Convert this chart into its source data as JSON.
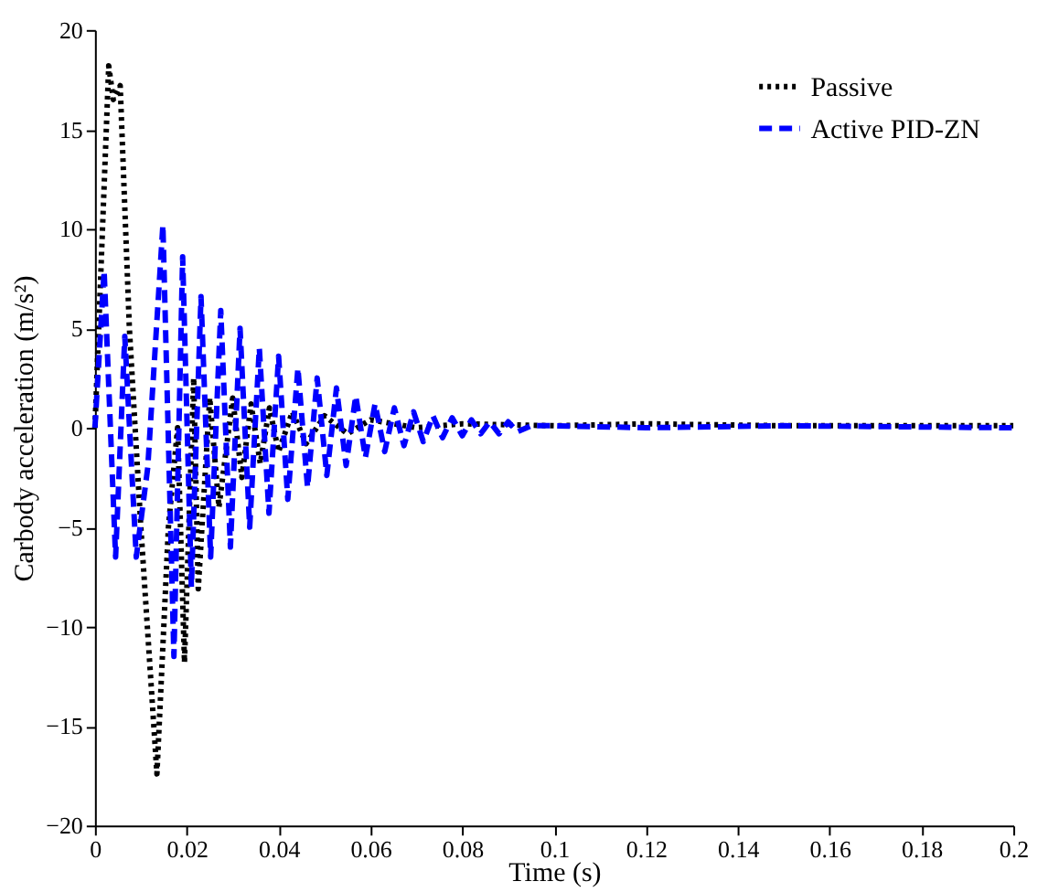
{
  "chart_data": {
    "type": "line",
    "xlabel": "Time (s)",
    "ylabel": "Carbody acceleration (m/s²)",
    "xlim": [
      0,
      0.2
    ],
    "xticks": [
      0,
      0.02,
      0.04,
      0.06,
      0.08,
      0.1,
      0.12,
      0.14,
      0.16,
      0.18,
      0.2
    ],
    "ylim": [
      -20,
      20
    ],
    "yticks": [
      -20,
      -15,
      -10,
      -5,
      0,
      5,
      10,
      15,
      20
    ],
    "grid": false,
    "legend": "top right",
    "series": [
      {
        "name": "Passive",
        "color": "#000000",
        "line_style": "dotted",
        "x": [
          0,
          0.003,
          0.004,
          0.0055,
          0.0075,
          0.01,
          0.0135,
          0.016,
          0.018,
          0.0195,
          0.0215,
          0.0225,
          0.025,
          0.027,
          0.03,
          0.032,
          0.034,
          0.036,
          0.038,
          0.04,
          0.043,
          0.046,
          0.05,
          0.055,
          0.06,
          0.07,
          0.08,
          0.1,
          0.12,
          0.15,
          0.2
        ],
        "values": [
          0,
          18.2,
          16.5,
          17.2,
          5,
          -5,
          -17.4,
          -5,
          0,
          -11.8,
          2.5,
          -8.1,
          1.5,
          -4,
          1.5,
          -2.5,
          1.2,
          -1.8,
          1,
          -1.2,
          0.8,
          -0.8,
          0.6,
          -0.3,
          0.4,
          0,
          0.2,
          0.1,
          0.2,
          0.1,
          0.1
        ]
      },
      {
        "name": "Active PID-ZN",
        "color": "#0000ff",
        "line_style": "dashed",
        "x": [
          0,
          0.002,
          0.0045,
          0.0065,
          0.009,
          0.0115,
          0.0148,
          0.0172,
          0.0191,
          0.021,
          0.0231,
          0.0252,
          0.0274,
          0.0295,
          0.0316,
          0.0337,
          0.0358,
          0.0379,
          0.04,
          0.042,
          0.0442,
          0.0463,
          0.0484,
          0.0505,
          0.0526,
          0.0547,
          0.0568,
          0.0589,
          0.061,
          0.0631,
          0.0652,
          0.0673,
          0.0694,
          0.0715,
          0.0736,
          0.0757,
          0.0778,
          0.08,
          0.082,
          0.084,
          0.086,
          0.088,
          0.09,
          0.092,
          0.095,
          0.1,
          0.12,
          0.15,
          0.2
        ],
        "values": [
          0,
          7.9,
          -6.5,
          4.6,
          -6.5,
          -2,
          10.2,
          -11.5,
          8.6,
          -8,
          6.6,
          -6.5,
          5.9,
          -6,
          5,
          -5,
          4,
          -4.3,
          3.6,
          -3.6,
          3,
          -3,
          2.5,
          -2.4,
          2,
          -1.9,
          1.6,
          -1.5,
          1.2,
          -1.2,
          1,
          -0.9,
          0.8,
          -0.7,
          0.6,
          -0.5,
          0.5,
          -0.4,
          0.4,
          -0.3,
          0.3,
          -0.3,
          0.3,
          -0.2,
          0.1,
          0.1,
          0,
          0.1,
          0
        ]
      }
    ]
  }
}
